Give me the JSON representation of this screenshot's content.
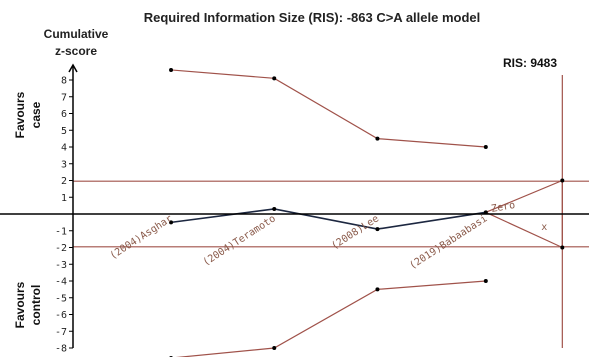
{
  "chart_data": {
    "type": "line",
    "title": "Required Information Size (RIS): -863 C>A allele model",
    "ylabel_line1": "Cumulative",
    "ylabel_line2": "z-score",
    "favours_case_line1": "Favours",
    "favours_case_line2": "case",
    "favours_control_line1": "Favours",
    "favours_control_line2": "control",
    "ris_label": "RIS: 9483",
    "ylim": [
      -8.3,
      8.8
    ],
    "y_ticks": [
      8,
      7,
      6,
      5,
      4,
      3,
      2,
      1,
      -1,
      -2,
      -3,
      -4,
      -5,
      -6,
      -7,
      -8
    ],
    "x_axis_max": 10000,
    "ris_value": 9483,
    "studies": [
      {
        "label": "(2004)Asghar",
        "x": 1900
      },
      {
        "label": "(2004)Teramoto",
        "x": 3900
      },
      {
        "label": "(2008)Lee",
        "x": 5900
      },
      {
        "label": "(2019)Babaabasi",
        "x": 8000
      }
    ],
    "zero_label": "Zero",
    "ris_mark": "x",
    "series": [
      {
        "key": "upper_boundary",
        "color": "#a0524a",
        "points": [
          [
            1900,
            8.6
          ],
          [
            3900,
            8.1
          ],
          [
            5900,
            4.5
          ],
          [
            8000,
            4.0
          ]
        ]
      },
      {
        "key": "lower_boundary",
        "color": "#a0524a",
        "points": [
          [
            1900,
            -8.6
          ],
          [
            3900,
            -8.0
          ],
          [
            5900,
            -4.5
          ],
          [
            8000,
            -4.0
          ]
        ]
      },
      {
        "key": "cumulative_z",
        "color": "#1c2740",
        "points": [
          [
            1900,
            -0.5
          ],
          [
            3900,
            0.3
          ],
          [
            5900,
            -0.9
          ],
          [
            8000,
            0.1
          ]
        ]
      },
      {
        "key": "extension",
        "color": "#a0524a",
        "points": [
          [
            8000,
            0.1
          ],
          [
            9483,
            2.0
          ],
          [
            9483,
            -2.0
          ],
          [
            8000,
            0.1
          ]
        ]
      }
    ],
    "significance_lines": [
      1.96,
      -1.96
    ],
    "colors": {
      "axis": "#000000",
      "boundary": "#a0524a",
      "z_curve": "#1c2740",
      "marker": "#000000"
    }
  }
}
